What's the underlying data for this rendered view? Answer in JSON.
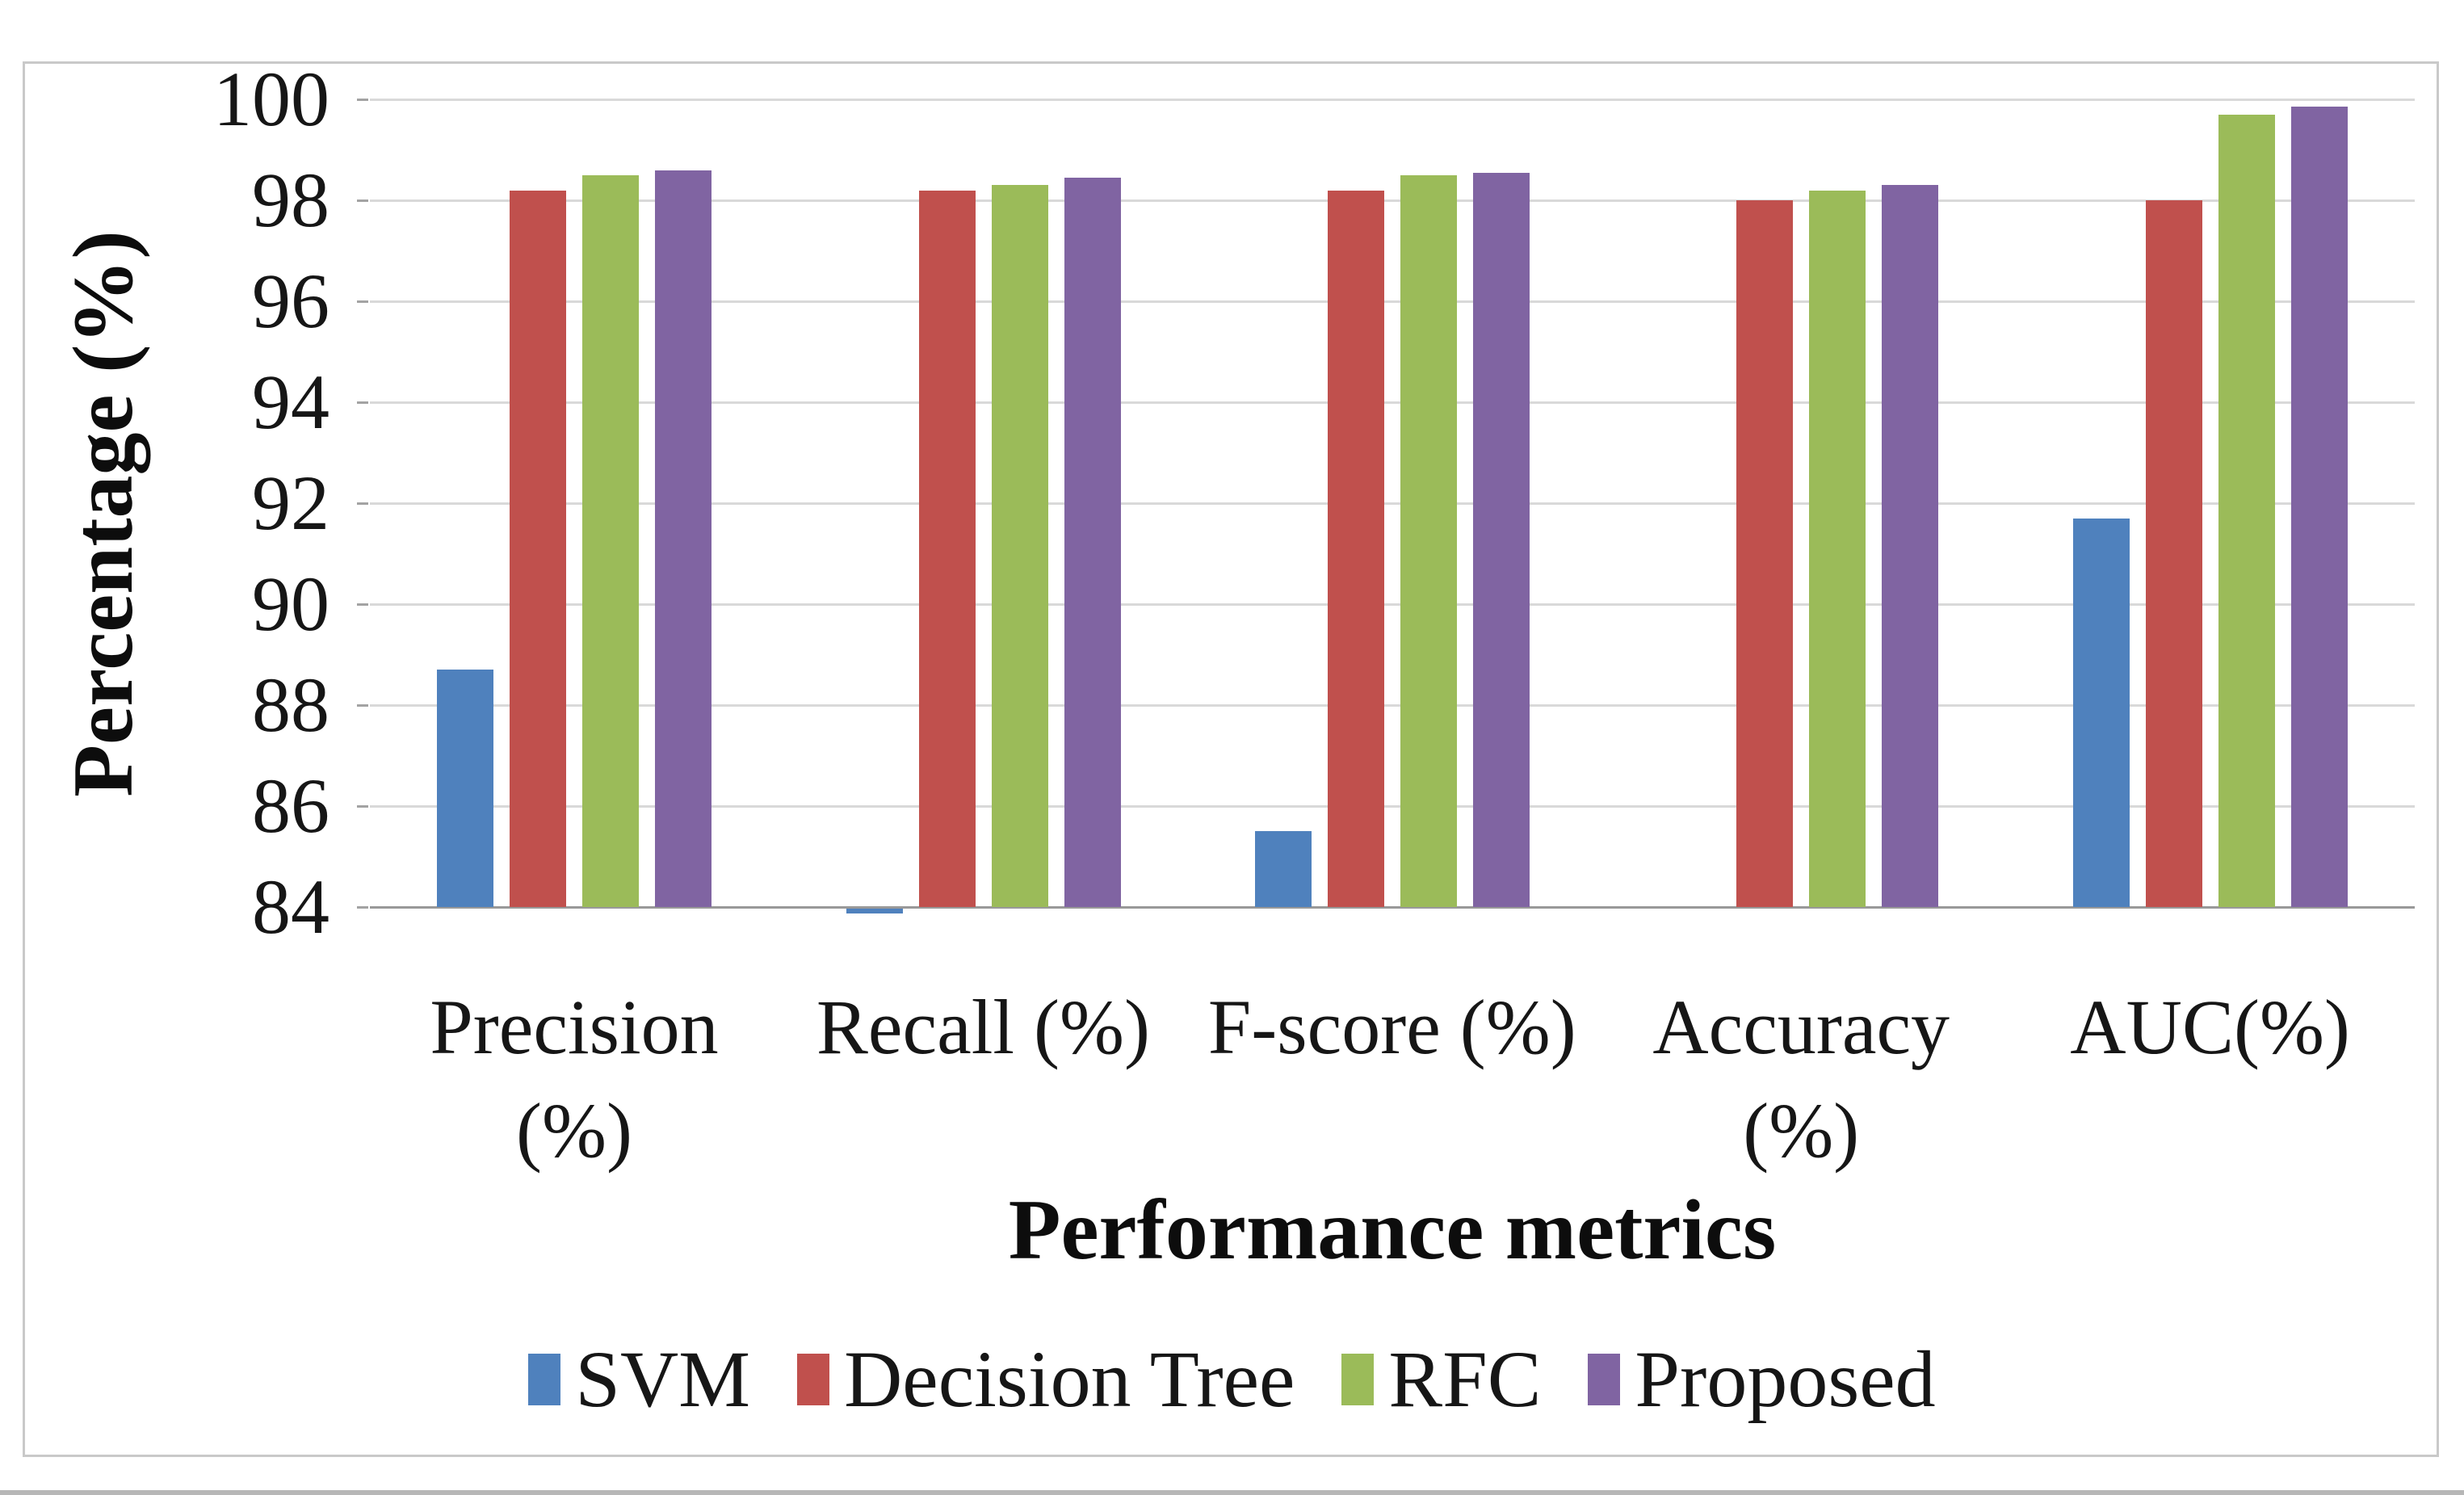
{
  "chart_data": {
    "type": "bar",
    "title": "",
    "xlabel": "Performance metrics",
    "ylabel": "Percentage (%)",
    "ylim": [
      84,
      100
    ],
    "ytick_step": 2,
    "yticks": [
      84,
      86,
      88,
      90,
      92,
      94,
      96,
      98,
      100
    ],
    "grid": true,
    "legend_position": "bottom-center",
    "categories": [
      "Precision (%)",
      "Recall (%)",
      "F-score (%)",
      "Accuracy (%)",
      "AUC(%)"
    ],
    "category_display_lines": [
      [
        "Precision",
        "(%)"
      ],
      [
        "Recall (%)"
      ],
      [
        "F-score (%)"
      ],
      [
        "Accuracy",
        "(%)"
      ],
      [
        "AUC(%)"
      ]
    ],
    "series": [
      {
        "name": "SVM",
        "color": "#4F81BD",
        "values": [
          88.7,
          83.9,
          85.5,
          null,
          91.7
        ]
      },
      {
        "name": "Decision Tree",
        "color": "#C0504D",
        "values": [
          98.2,
          98.2,
          98.2,
          98.0,
          98.0
        ]
      },
      {
        "name": "RFC",
        "color": "#9BBB59",
        "values": [
          98.5,
          98.3,
          98.5,
          98.2,
          99.7
        ]
      },
      {
        "name": "Proposed",
        "color": "#8064A2",
        "values": [
          98.6,
          98.45,
          98.55,
          98.3,
          99.85
        ]
      }
    ]
  },
  "style": {
    "gridline_color": "#d9d9d9",
    "axis_line_color": "#999999",
    "border_color": "#c9c9c9",
    "background": "#ffffff"
  }
}
